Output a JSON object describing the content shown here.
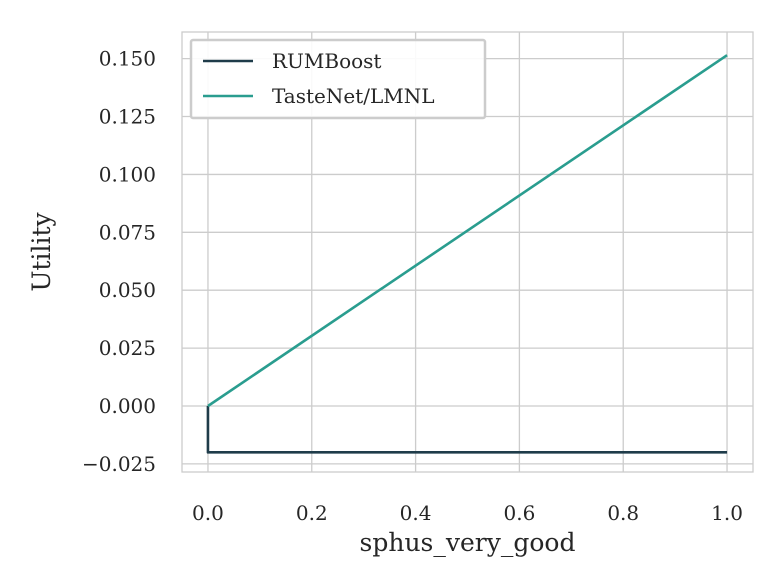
{
  "chart_data": {
    "type": "line",
    "title": "",
    "xlabel": "sphus_very_good",
    "ylabel": "Utility",
    "xlim": [
      -0.05,
      1.05
    ],
    "ylim": [
      -0.0285,
      0.1615
    ],
    "xticks": [
      0.0,
      0.2,
      0.4,
      0.6,
      0.8,
      1.0
    ],
    "xtick_labels": [
      "0.0",
      "0.2",
      "0.4",
      "0.6",
      "0.8",
      "1.0"
    ],
    "yticks": [
      -0.025,
      0.0,
      0.025,
      0.05,
      0.075,
      0.1,
      0.125,
      0.15
    ],
    "ytick_labels": [
      "−0.025",
      "0.000",
      "0.025",
      "0.050",
      "0.075",
      "0.100",
      "0.125",
      "0.150"
    ],
    "grid": true,
    "legend_position": "upper-left",
    "series": [
      {
        "name": "RUMBoost",
        "color": "#1f3c4a",
        "x": [
          0.0,
          0.0,
          1.0
        ],
        "y": [
          0.0,
          -0.02,
          -0.02
        ]
      },
      {
        "name": "TasteNet/LMNL",
        "color": "#2a9d8f",
        "x": [
          0.0,
          1.0
        ],
        "y": [
          0.0,
          0.1515
        ]
      }
    ]
  }
}
